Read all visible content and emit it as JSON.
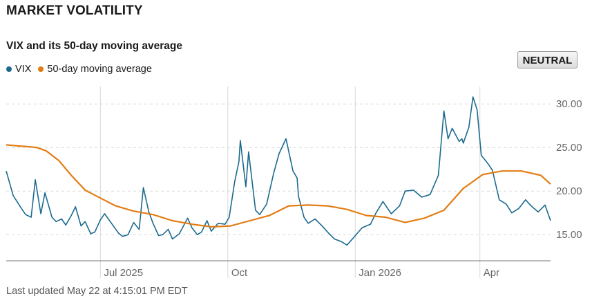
{
  "header": {
    "title": "MARKET VOLATILITY",
    "subtitle": "VIX and its 50-day moving average",
    "badge": "NEUTRAL"
  },
  "footer": {
    "updated": "Last updated May 22 at 4:15:01 PM EDT"
  },
  "colors": {
    "vix": "#1b6a8e",
    "ma": "#e37c13",
    "grid": "#d9d9d9",
    "axis": "#777777"
  },
  "chart_data": {
    "type": "line",
    "title": "VIX and its 50-day moving average",
    "ylim": [
      12,
      32
    ],
    "y_ticks": [
      {
        "value": 15,
        "label": "15.00"
      },
      {
        "value": 20,
        "label": "20.00"
      },
      {
        "value": 25,
        "label": "25.00"
      },
      {
        "value": 30,
        "label": "30.00"
      }
    ],
    "x_ticks": [
      {
        "value": "2025-07-01",
        "label": "Jul 2025"
      },
      {
        "value": "2025-10-01",
        "label": "Oct"
      },
      {
        "value": "2026-01-01",
        "label": "Jan 2026"
      },
      {
        "value": "2026-04-01",
        "label": "Apr"
      }
    ],
    "xlim": [
      "2025-04-24",
      "2026-05-22"
    ],
    "grid": true,
    "legend_position": "top-left",
    "series": [
      {
        "name": "VIX",
        "x": [
          "2025-04-24",
          "2025-04-29",
          "2025-05-01",
          "2025-05-05",
          "2025-05-08",
          "2025-05-12",
          "2025-05-15",
          "2025-05-19",
          "2025-05-22",
          "2025-05-27",
          "2025-05-30",
          "2025-06-03",
          "2025-06-06",
          "2025-06-10",
          "2025-06-13",
          "2025-06-17",
          "2025-06-20",
          "2025-06-24",
          "2025-06-27",
          "2025-07-01",
          "2025-07-04",
          "2025-07-09",
          "2025-07-14",
          "2025-07-17",
          "2025-07-21",
          "2025-07-25",
          "2025-07-29",
          "2025-08-01",
          "2025-08-05",
          "2025-08-08",
          "2025-08-12",
          "2025-08-15",
          "2025-08-19",
          "2025-08-22",
          "2025-08-27",
          "2025-09-02",
          "2025-09-05",
          "2025-09-09",
          "2025-09-12",
          "2025-09-16",
          "2025-09-19",
          "2025-09-24",
          "2025-09-29",
          "2025-10-02",
          "2025-10-06",
          "2025-10-09",
          "2025-10-10",
          "2025-10-14",
          "2025-10-16",
          "2025-10-21",
          "2025-10-24",
          "2025-10-29",
          "2025-11-03",
          "2025-11-07",
          "2025-11-12",
          "2025-11-17",
          "2025-11-20",
          "2025-11-21",
          "2025-11-25",
          "2025-11-28",
          "2025-12-03",
          "2025-12-08",
          "2025-12-12",
          "2025-12-17",
          "2025-12-22",
          "2025-12-26",
          "2025-12-31",
          "2026-01-06",
          "2026-01-12",
          "2026-01-16",
          "2026-01-21",
          "2026-01-27",
          "2026-02-02",
          "2026-02-06",
          "2026-02-12",
          "2026-02-18",
          "2026-02-24",
          "2026-03-02",
          "2026-03-06",
          "2026-03-09",
          "2026-03-12",
          "2026-03-17",
          "2026-03-19",
          "2026-03-20",
          "2026-03-24",
          "2026-03-27",
          "2026-03-30",
          "2026-04-02",
          "2026-04-07",
          "2026-04-10",
          "2026-04-15",
          "2026-04-20",
          "2026-04-24",
          "2026-04-29",
          "2026-05-04",
          "2026-05-08",
          "2026-05-13",
          "2026-05-18",
          "2026-05-22"
        ],
        "values": [
          22.3,
          19.5,
          19.0,
          18.0,
          17.3,
          17.0,
          21.3,
          17.4,
          19.8,
          17.0,
          16.5,
          16.8,
          16.1,
          17.2,
          18.2,
          16.0,
          16.5,
          15.1,
          15.3,
          16.7,
          17.4,
          16.3,
          15.2,
          14.8,
          15.0,
          16.4,
          15.6,
          20.4,
          17.6,
          16.3,
          14.9,
          15.0,
          15.6,
          14.5,
          15.1,
          16.9,
          15.8,
          15.0,
          15.3,
          16.6,
          15.4,
          16.3,
          16.2,
          17.0,
          21.1,
          23.4,
          25.8,
          20.5,
          24.5,
          17.8,
          17.3,
          18.5,
          22.0,
          24.3,
          26.0,
          22.3,
          21.5,
          19.4,
          17.0,
          16.3,
          16.8,
          16.0,
          15.3,
          14.5,
          14.2,
          13.8,
          14.7,
          15.8,
          16.2,
          17.5,
          18.8,
          17.4,
          18.3,
          20.0,
          20.1,
          19.3,
          19.6,
          21.8,
          29.2,
          26.0,
          27.2,
          25.7,
          26.0,
          25.5,
          27.3,
          30.8,
          29.3,
          24.1,
          23.1,
          22.4,
          19.0,
          18.5,
          17.5,
          18.0,
          19.0,
          18.3,
          17.6,
          18.4,
          16.6
        ]
      },
      {
        "name": "50-day moving average",
        "x": [
          "2025-04-24",
          "2025-05-01",
          "2025-05-09",
          "2025-05-16",
          "2025-05-23",
          "2025-06-01",
          "2025-06-10",
          "2025-06-20",
          "2025-07-01",
          "2025-07-12",
          "2025-07-25",
          "2025-08-08",
          "2025-08-22",
          "2025-09-05",
          "2025-09-19",
          "2025-10-03",
          "2025-10-17",
          "2025-10-31",
          "2025-11-14",
          "2025-11-28",
          "2025-12-12",
          "2025-12-26",
          "2026-01-09",
          "2026-01-23",
          "2026-02-06",
          "2026-02-20",
          "2026-03-06",
          "2026-03-20",
          "2026-04-03",
          "2026-04-17",
          "2026-05-01",
          "2026-05-15",
          "2026-05-22"
        ],
        "values": [
          25.3,
          25.2,
          25.1,
          25.0,
          24.6,
          23.5,
          21.8,
          20.1,
          19.2,
          18.3,
          17.7,
          17.3,
          16.6,
          16.2,
          15.9,
          16.0,
          16.6,
          17.2,
          18.3,
          18.4,
          18.3,
          17.9,
          17.2,
          17.0,
          16.4,
          16.9,
          17.8,
          20.3,
          21.9,
          22.3,
          22.3,
          21.8,
          20.8
        ]
      }
    ]
  }
}
